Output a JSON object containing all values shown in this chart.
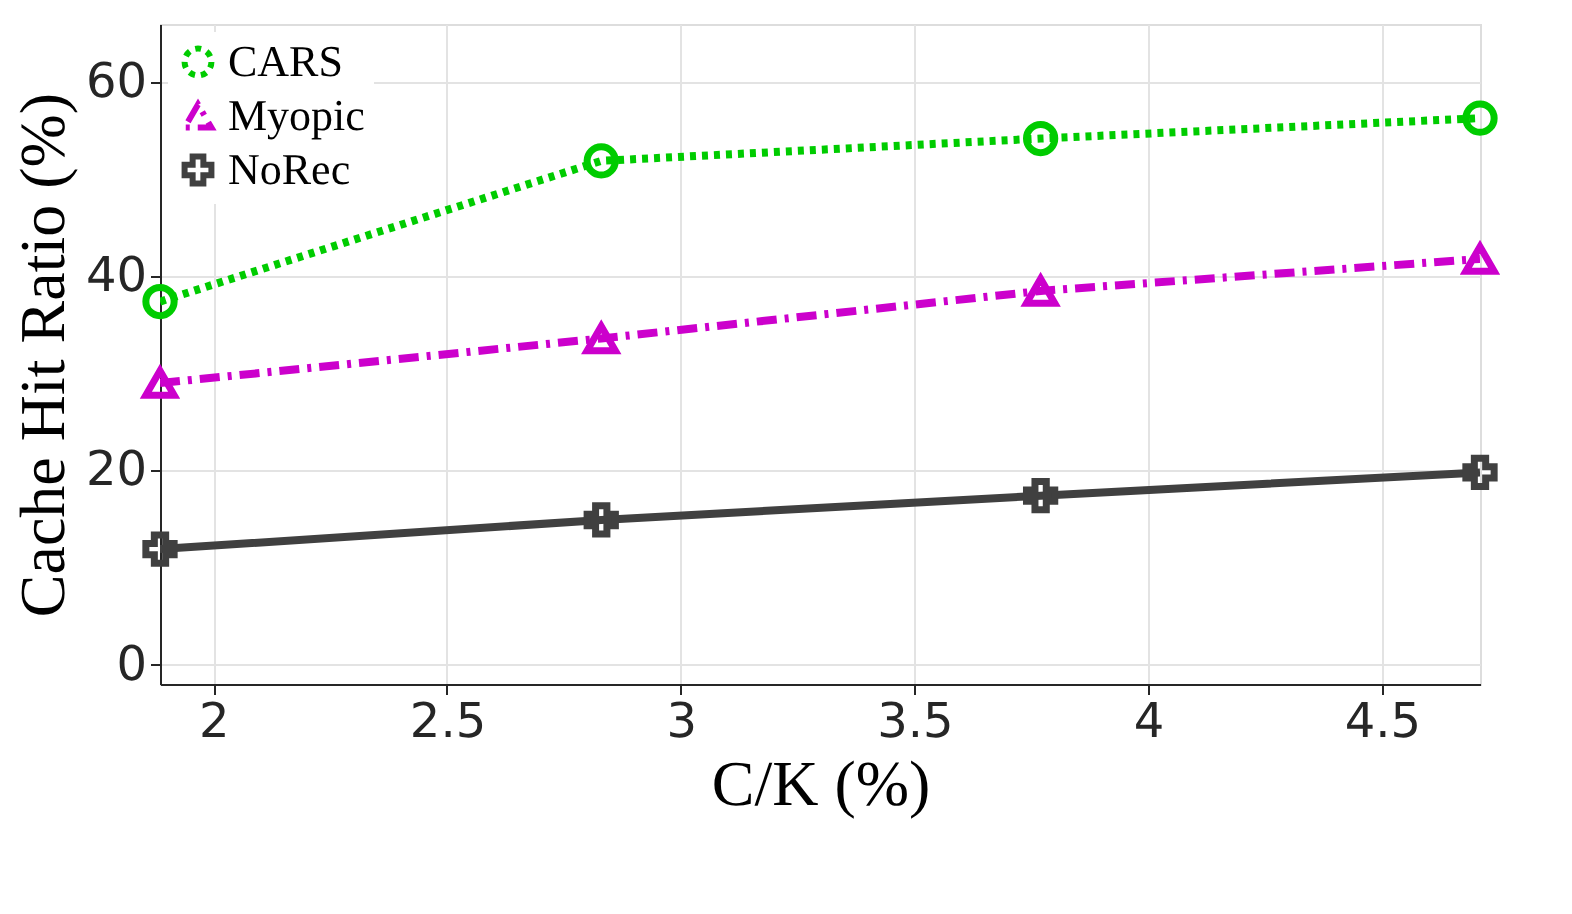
{
  "chart_data": {
    "type": "line",
    "xlabel": "C/K (%)",
    "ylabel": "Cache Hit Ratio (%)",
    "x": [
      1.886,
      2.83,
      3.77,
      4.71
    ],
    "xlim": [
      1.886,
      4.71
    ],
    "xticks": [
      2,
      2.5,
      3,
      3.5,
      4,
      4.5
    ],
    "ylim": [
      -2,
      66
    ],
    "yticks": [
      0,
      20,
      40,
      60
    ],
    "grid": true,
    "legend": "top left",
    "series": [
      {
        "name": "CARS",
        "color": "#00cc00",
        "marker": "circle",
        "line_style": "dotted",
        "values": [
          37.4,
          51.9,
          54.2,
          56.3
        ]
      },
      {
        "name": "Myopic",
        "color": "#cc00cc",
        "marker": "triangle",
        "line_style": "dashed",
        "values": [
          29.0,
          33.6,
          38.5,
          41.8
        ]
      },
      {
        "name": "NoRec",
        "color": "#404040",
        "marker": "cross",
        "line_style": "solid",
        "values": [
          11.9,
          14.9,
          17.4,
          19.8
        ]
      }
    ]
  }
}
